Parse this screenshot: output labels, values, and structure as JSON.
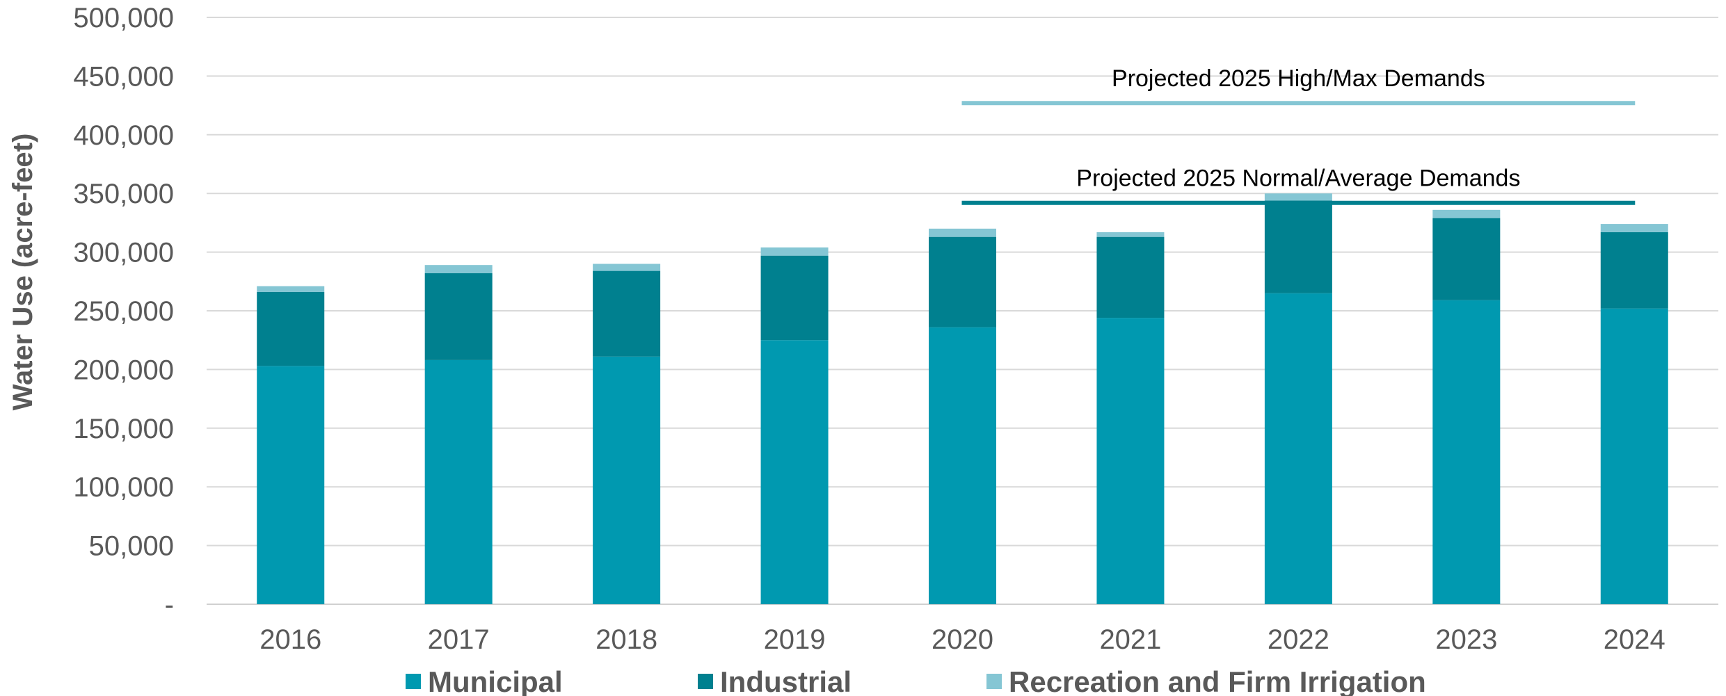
{
  "chart_data": {
    "type": "bar",
    "stacked": true,
    "title": "",
    "xlabel": "",
    "ylabel": "Water Use (acre-feet)",
    "ylim": [
      0,
      500000
    ],
    "yticks": [
      0,
      50000,
      100000,
      150000,
      200000,
      250000,
      300000,
      350000,
      400000,
      450000,
      500000
    ],
    "ytick_labels": [
      "-",
      "50,000",
      "100,000",
      "150,000",
      "200,000",
      "250,000",
      "300,000",
      "350,000",
      "400,000",
      "450,000",
      "500,000"
    ],
    "grid": true,
    "legend_position": "bottom",
    "categories": [
      "2016",
      "2017",
      "2018",
      "2019",
      "2020",
      "2021",
      "2022",
      "2023",
      "2024"
    ],
    "series": [
      {
        "name": "Municipal",
        "color": "#0099B0",
        "values": [
          203000,
          208000,
          211000,
          225000,
          236000,
          244000,
          265000,
          259000,
          252000
        ]
      },
      {
        "name": "Industrial",
        "color": "#00808F",
        "values": [
          63000,
          74000,
          73000,
          72000,
          77000,
          69000,
          79000,
          70000,
          65000
        ]
      },
      {
        "name": "Recreation and Firm Irrigation",
        "color": "#85C6D4",
        "values": [
          5000,
          7000,
          6000,
          7000,
          7000,
          4000,
          6000,
          7000,
          7000
        ]
      }
    ],
    "reference_lines": [
      {
        "label": "Projected 2025 High/Max Demands",
        "value": 427000,
        "from": "2020",
        "to": "2024",
        "color": "#85C6D4"
      },
      {
        "label": "Projected 2025 Normal/Average Demands",
        "value": 342000,
        "from": "2020",
        "to": "2024",
        "color": "#00808F"
      }
    ]
  }
}
